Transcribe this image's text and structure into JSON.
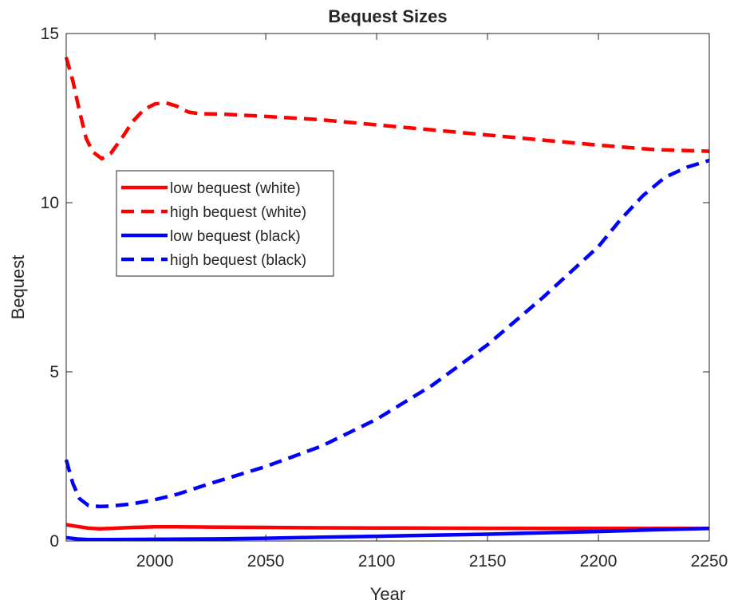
{
  "chart_data": {
    "type": "line",
    "title": "Bequest Sizes",
    "xlabel": "Year",
    "ylabel": "Bequest",
    "xlim": [
      1960,
      2250
    ],
    "ylim": [
      0,
      15
    ],
    "xticks": [
      2000,
      2050,
      2100,
      2150,
      2200,
      2250
    ],
    "yticks": [
      0,
      5,
      10,
      15
    ],
    "grid": false,
    "legend_position": "upper-left",
    "series": [
      {
        "name": "low bequest (white)",
        "color": "#ff0000",
        "style": "solid",
        "x": [
          1960,
          1965,
          1970,
          1975,
          1980,
          1990,
          2000,
          2005,
          2010,
          2025,
          2050,
          2075,
          2100,
          2125,
          2150,
          2175,
          2200,
          2225,
          2250
        ],
        "y": [
          0.48,
          0.43,
          0.38,
          0.36,
          0.37,
          0.4,
          0.42,
          0.42,
          0.42,
          0.41,
          0.4,
          0.39,
          0.385,
          0.38,
          0.375,
          0.37,
          0.37,
          0.37,
          0.37
        ]
      },
      {
        "name": "high bequest (white)",
        "color": "#ff0000",
        "style": "dashed",
        "x": [
          1960,
          1963,
          1966,
          1969,
          1972,
          1976,
          1980,
          1985,
          1990,
          1995,
          2000,
          2005,
          2010,
          2015,
          2020,
          2030,
          2050,
          2075,
          2100,
          2125,
          2150,
          2175,
          2200,
          2225,
          2250
        ],
        "y": [
          14.3,
          13.6,
          12.7,
          11.9,
          11.5,
          11.3,
          11.45,
          11.9,
          12.4,
          12.75,
          12.92,
          12.95,
          12.85,
          12.68,
          12.63,
          12.62,
          12.55,
          12.45,
          12.3,
          12.15,
          12.0,
          11.85,
          11.7,
          11.57,
          11.52
        ]
      },
      {
        "name": "low bequest (black)",
        "color": "#0000ff",
        "style": "solid",
        "x": [
          1960,
          1965,
          1970,
          1980,
          2000,
          2025,
          2050,
          2075,
          2100,
          2125,
          2150,
          2175,
          2200,
          2225,
          2250
        ],
        "y": [
          0.1,
          0.06,
          0.04,
          0.04,
          0.05,
          0.06,
          0.08,
          0.11,
          0.14,
          0.17,
          0.2,
          0.24,
          0.28,
          0.33,
          0.37
        ]
      },
      {
        "name": "high bequest (black)",
        "color": "#0000ff",
        "style": "dashed",
        "x": [
          1960,
          1963,
          1966,
          1970,
          1975,
          1980,
          1990,
          2000,
          2010,
          2025,
          2050,
          2075,
          2100,
          2125,
          2150,
          2175,
          2200,
          2210,
          2220,
          2230,
          2240,
          2250
        ],
        "y": [
          2.4,
          1.7,
          1.25,
          1.05,
          1.02,
          1.03,
          1.1,
          1.22,
          1.38,
          1.7,
          2.2,
          2.8,
          3.6,
          4.6,
          5.8,
          7.2,
          8.7,
          9.5,
          10.2,
          10.75,
          11.05,
          11.25
        ]
      }
    ]
  }
}
